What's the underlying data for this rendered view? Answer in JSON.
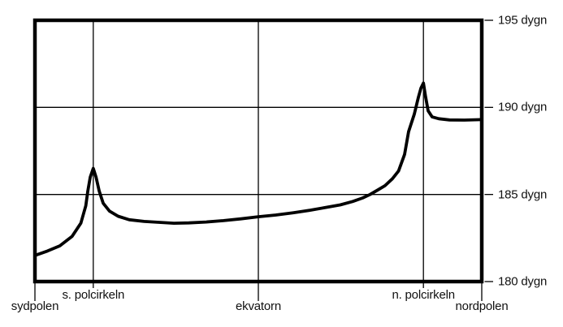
{
  "figure": {
    "background": "#ffffff",
    "ink": "#000000"
  },
  "chart_data": {
    "type": "line",
    "title": "",
    "xlabel": "",
    "ylabel": "dygn",
    "grid": true,
    "legend": "none",
    "x_axis": {
      "unit": "latitud",
      "min": -90,
      "max": 90,
      "ticks": [
        {
          "value": -90,
          "label": "sydpolen",
          "gridline": false,
          "long_tick": true
        },
        {
          "value": -66.5,
          "label": "s. polcirkeln",
          "gridline": true,
          "long_tick": false
        },
        {
          "value": 0,
          "label": "ekvatorn",
          "gridline": true,
          "long_tick": true
        },
        {
          "value": 66.5,
          "label": "n. polcirkeln",
          "gridline": true,
          "long_tick": false
        },
        {
          "value": 90,
          "label": "nordpolen",
          "gridline": false,
          "long_tick": true
        }
      ]
    },
    "y_axis": {
      "unit": "dygn",
      "min": 180,
      "max": 195,
      "ticks": [
        {
          "value": 195,
          "label": "195 dygn",
          "gridline": false
        },
        {
          "value": 190,
          "label": "190 dygn",
          "gridline": true
        },
        {
          "value": 185,
          "label": "185 dygn",
          "gridline": true
        },
        {
          "value": 180,
          "label": "180 dygn",
          "gridline": false
        }
      ]
    },
    "series": [
      {
        "name": "dygn",
        "color": "#000000",
        "points": [
          [
            -90,
            181.5
          ],
          [
            -85,
            181.75
          ],
          [
            -80,
            182.05
          ],
          [
            -75,
            182.6
          ],
          [
            -71.5,
            183.35
          ],
          [
            -69.5,
            184.35
          ],
          [
            -68.7,
            185.2
          ],
          [
            -67.7,
            186.0
          ],
          [
            -66.5,
            186.5
          ],
          [
            -65.4,
            186.0
          ],
          [
            -64.1,
            185.2
          ],
          [
            -62.5,
            184.5
          ],
          [
            -60,
            184.05
          ],
          [
            -56.5,
            183.75
          ],
          [
            -52,
            183.55
          ],
          [
            -46,
            183.45
          ],
          [
            -40,
            183.4
          ],
          [
            -34,
            183.35
          ],
          [
            -28,
            183.37
          ],
          [
            -21,
            183.42
          ],
          [
            -14,
            183.5
          ],
          [
            -7,
            183.6
          ],
          [
            0,
            183.72
          ],
          [
            7,
            183.82
          ],
          [
            14,
            183.95
          ],
          [
            21,
            184.1
          ],
          [
            27,
            184.25
          ],
          [
            33,
            184.4
          ],
          [
            38,
            184.6
          ],
          [
            42,
            184.8
          ],
          [
            45,
            185.0
          ],
          [
            48,
            185.25
          ],
          [
            51,
            185.5
          ],
          [
            54,
            185.9
          ],
          [
            56.5,
            186.35
          ],
          [
            58.9,
            187.3
          ],
          [
            60.5,
            188.6
          ],
          [
            62.8,
            189.6
          ],
          [
            64.5,
            190.6
          ],
          [
            65.5,
            191.1
          ],
          [
            66.5,
            191.4
          ],
          [
            67.4,
            190.6
          ],
          [
            68.4,
            189.8
          ],
          [
            70,
            189.45
          ],
          [
            72.7,
            189.35
          ],
          [
            77,
            189.28
          ],
          [
            83,
            189.27
          ],
          [
            90,
            189.3
          ]
        ]
      }
    ],
    "annotations": {
      "south_peak_dygn": 186.5,
      "north_peak_dygn": 191.4,
      "value_at_equator_dygn": 183.7,
      "value_at_south_pole_dygn": 181.5,
      "value_at_north_pole_dygn": 189.3
    }
  }
}
